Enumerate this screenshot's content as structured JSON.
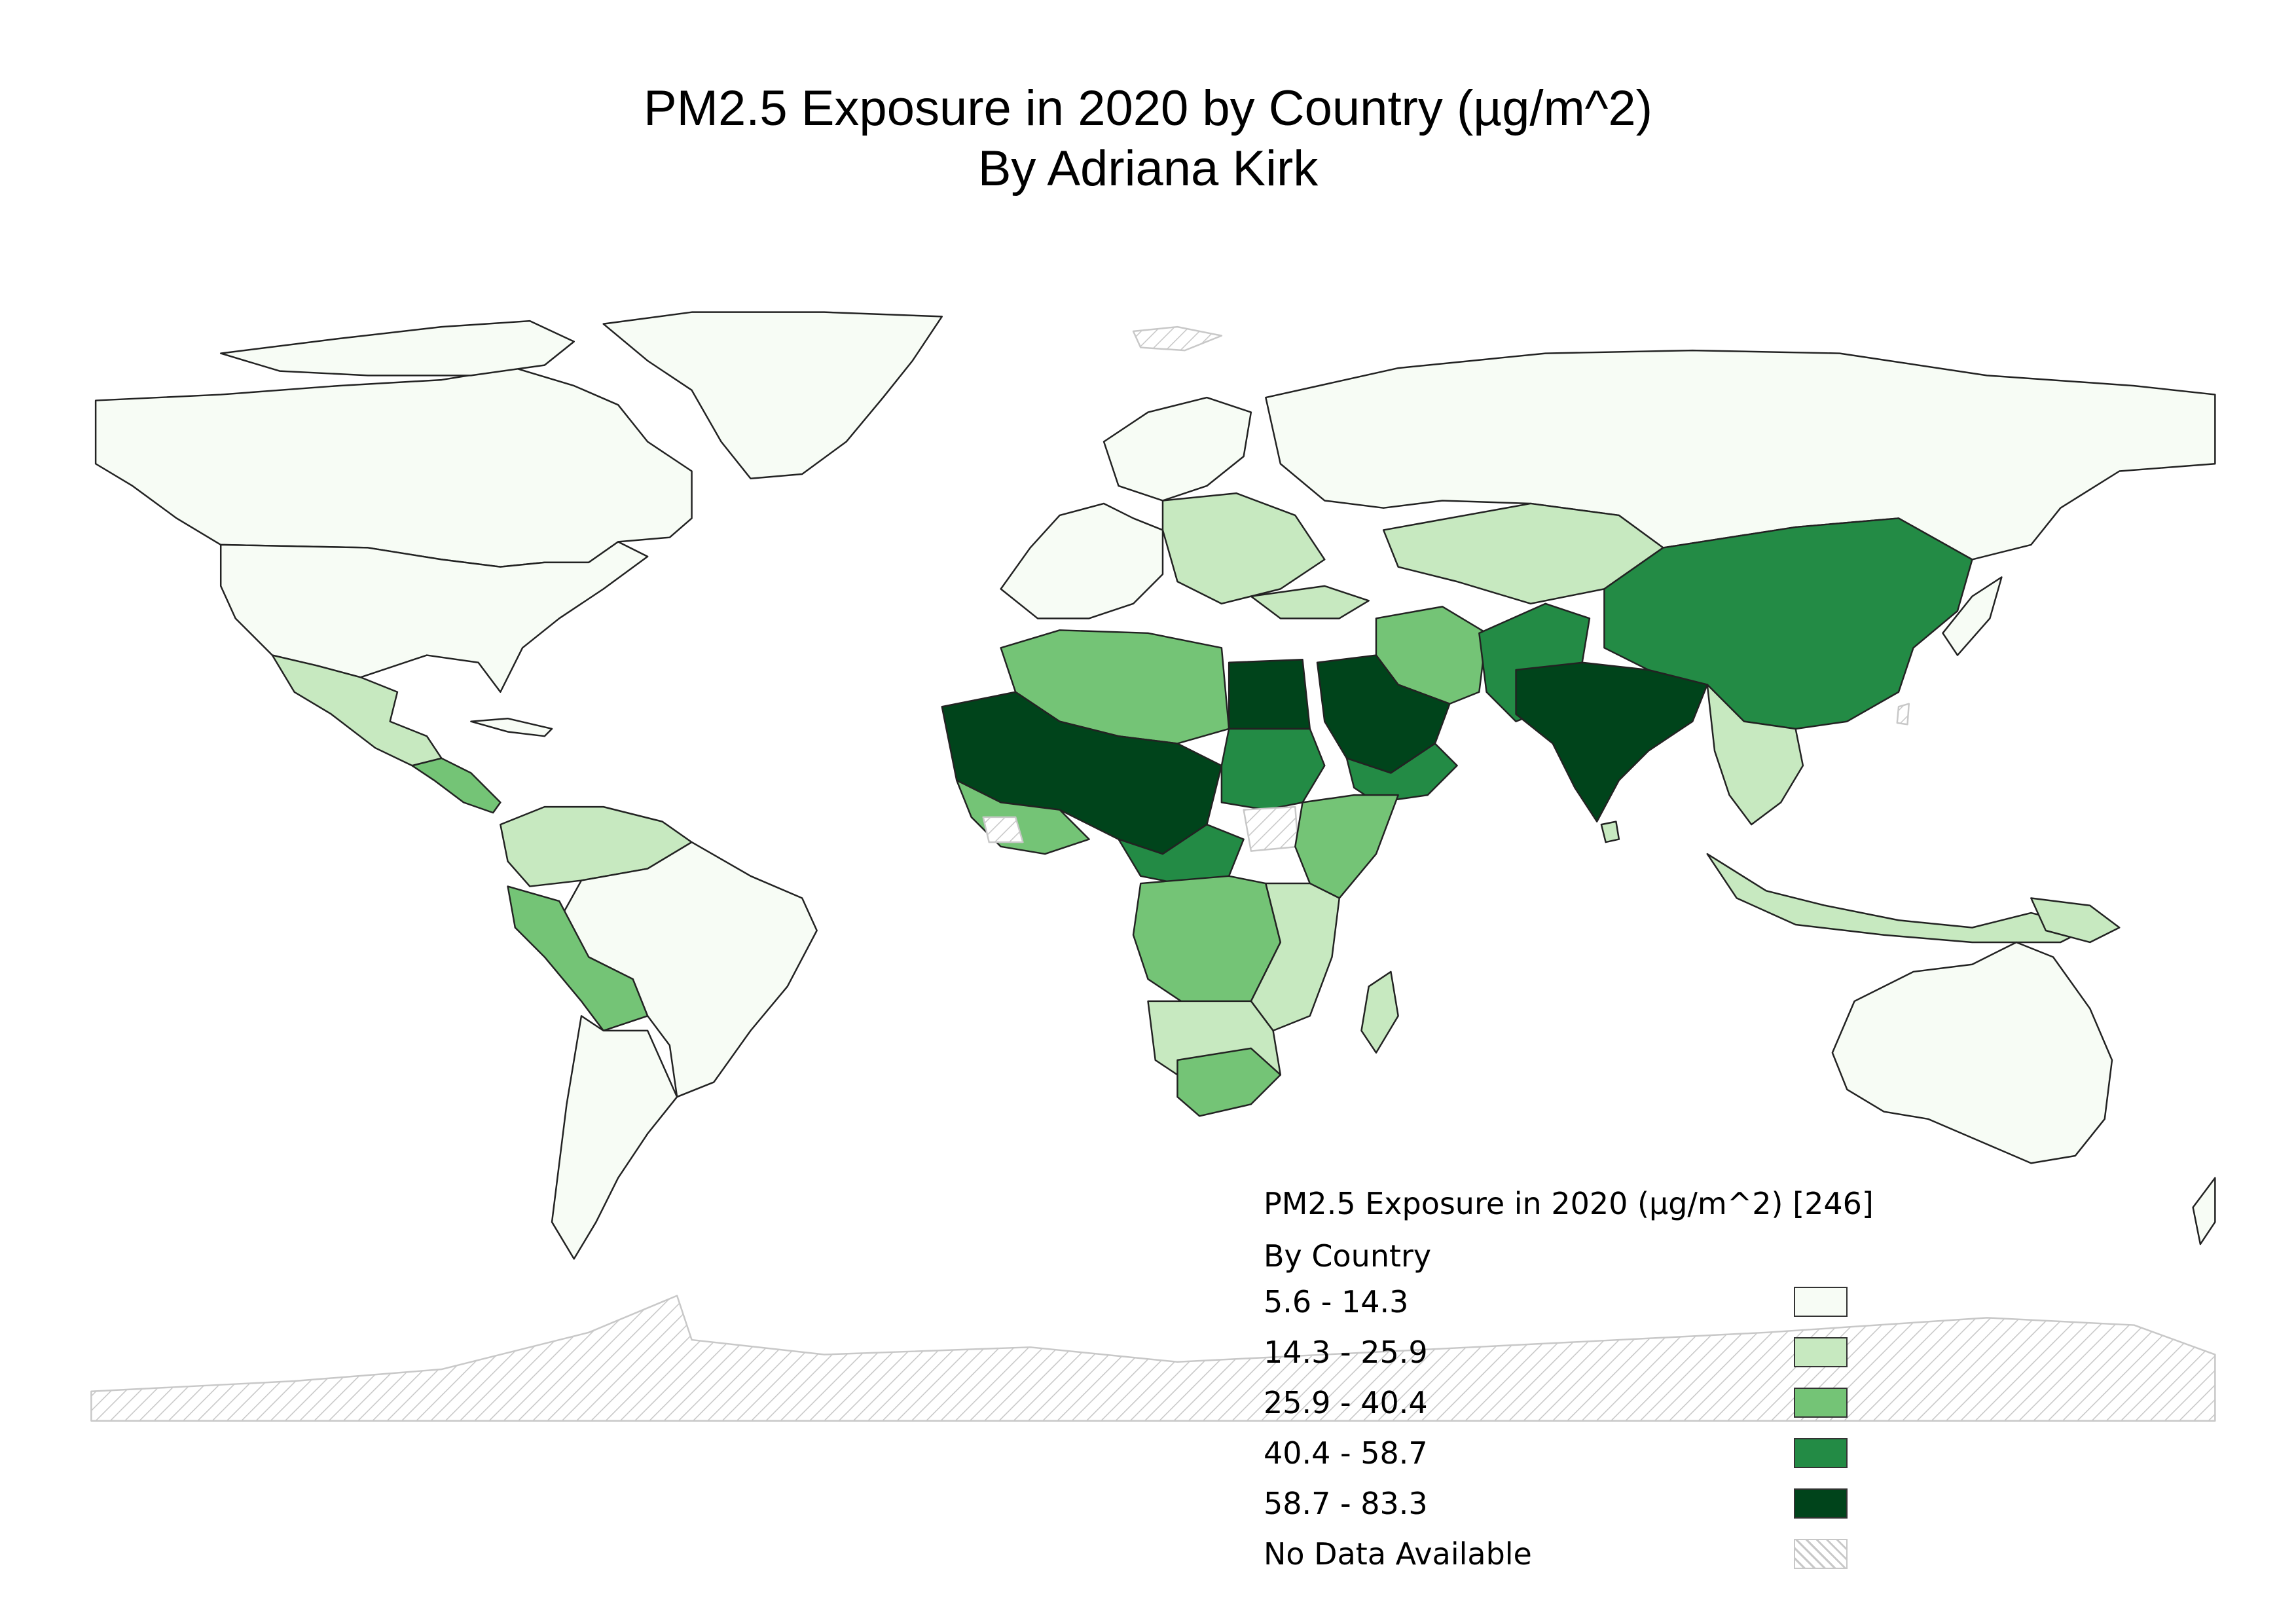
{
  "title": {
    "line1": "PM2.5 Exposure in 2020 by Country (µg/m^2)",
    "line2": "By Adriana Kirk"
  },
  "legend": {
    "title": "PM2.5 Exposure in 2020 (µg/m^2) [246]",
    "subtitle": "By Country",
    "classes": [
      {
        "label": "5.6 - 14.3",
        "color": "#f7fcf5"
      },
      {
        "label": "14.3 - 25.9",
        "color": "#c7e9c0"
      },
      {
        "label": "25.9 - 40.4",
        "color": "#74c476"
      },
      {
        "label": "40.4 - 58.7",
        "color": "#238b45"
      },
      {
        "label": "58.7 - 83.3",
        "color": "#00441b"
      },
      {
        "label": "No Data Available",
        "color": "#c8c8c8"
      }
    ]
  },
  "map_data": {
    "projection": "equirectangular world",
    "no_data_style": "grey diagonal hatch",
    "regions_by_class": {
      "5.6 - 14.3": [
        "Canada",
        "United States",
        "Greenland",
        "Russia",
        "Brazil",
        "Argentina",
        "Chile",
        "Australia",
        "Western Europe",
        "Scandinavia",
        "Japan",
        "New Zealand",
        "Cuba"
      ],
      "14.3 - 25.9": [
        "Mexico",
        "Colombia",
        "Venezuela",
        "Kazakhstan",
        "Eastern Europe",
        "Tanzania",
        "Zambia",
        "Mozambique",
        "Madagascar",
        "Angola",
        "Southeast Asia",
        "Papua New Guinea",
        "Sri Lanka",
        "Turkey"
      ],
      "25.9 - 40.4": [
        "Peru",
        "Bolivia",
        "Algeria",
        "Libya",
        "Iran",
        "Kenya",
        "Ethiopia",
        "DR Congo",
        "South Africa",
        "Vietnam",
        "Central America"
      ],
      "40.4 - 58.7": [
        "China",
        "Sudan",
        "Oman",
        "Yemen",
        "Iraq",
        "Afghanistan",
        "Myanmar",
        "Cameroon",
        "Central African Republic",
        "Ghana"
      ],
      "58.7 - 83.3": [
        "Egypt",
        "Saudi Arabia",
        "India",
        "Pakistan",
        "Bangladesh",
        "Nepal",
        "Mauritania",
        "Mali",
        "Niger",
        "Chad",
        "Nigeria",
        "Senegal"
      ],
      "No Data Available": [
        "Antarctica",
        "Svalbard",
        "Aegean islands",
        "South Sudan",
        "Sierra Leone",
        "Taiwan",
        "Arctic islands"
      ]
    }
  }
}
